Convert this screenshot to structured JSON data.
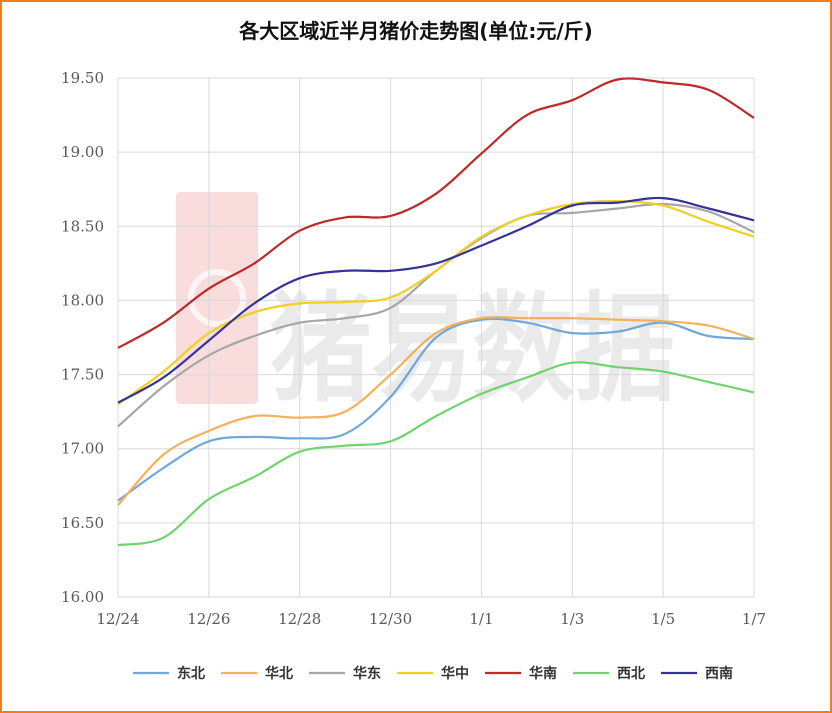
{
  "chart_data": {
    "type": "line",
    "title": "各大区域近半月猪价走势图(单位:元/斤)",
    "xlabel": "",
    "ylabel": "",
    "x_ticks": [
      "12/24",
      "12/26",
      "12/28",
      "12/30",
      "1/1",
      "1/3",
      "1/5",
      "1/7"
    ],
    "ylim": [
      16.0,
      19.5
    ],
    "y_ticks": [
      "16.00",
      "16.50",
      "17.00",
      "17.50",
      "18.00",
      "18.50",
      "19.00",
      "19.50"
    ],
    "grid": "vertical and horizontal",
    "legend_position": "bottom",
    "x": [
      "12/24",
      "12/25",
      "12/26",
      "12/27",
      "12/28",
      "12/29",
      "12/30",
      "12/31",
      "1/1",
      "1/2",
      "1/3",
      "1/4",
      "1/5",
      "1/6",
      "1/7"
    ],
    "series": [
      {
        "name": "东北",
        "color": "#6fa8dc",
        "values": [
          16.65,
          16.87,
          17.05,
          17.08,
          17.07,
          17.1,
          17.35,
          17.75,
          17.87,
          17.85,
          17.78,
          17.79,
          17.85,
          17.76,
          17.74
        ]
      },
      {
        "name": "华北",
        "color": "#f4b05a",
        "values": [
          16.62,
          16.96,
          17.12,
          17.22,
          17.21,
          17.25,
          17.5,
          17.78,
          17.88,
          17.88,
          17.88,
          17.87,
          17.86,
          17.83,
          17.74
        ]
      },
      {
        "name": "华东",
        "color": "#a6a6a6",
        "values": [
          17.15,
          17.42,
          17.63,
          17.76,
          17.85,
          17.88,
          17.95,
          18.2,
          18.42,
          18.57,
          18.59,
          18.62,
          18.65,
          18.6,
          18.46
        ]
      },
      {
        "name": "华中",
        "color": "#f0d020",
        "values": [
          17.3,
          17.52,
          17.78,
          17.92,
          17.98,
          17.99,
          18.02,
          18.2,
          18.43,
          18.57,
          18.65,
          18.67,
          18.64,
          18.53,
          18.43
        ]
      },
      {
        "name": "华南",
        "color": "#c0282a",
        "values": [
          17.68,
          17.85,
          18.08,
          18.25,
          18.47,
          18.56,
          18.57,
          18.72,
          18.99,
          19.25,
          19.35,
          19.49,
          19.47,
          19.42,
          19.23
        ]
      },
      {
        "name": "西北",
        "color": "#6ed46e",
        "values": [
          16.35,
          16.4,
          16.66,
          16.81,
          16.98,
          17.02,
          17.05,
          17.22,
          17.37,
          17.48,
          17.58,
          17.55,
          17.52,
          17.45,
          17.38
        ]
      },
      {
        "name": "西南",
        "color": "#333399",
        "values": [
          17.31,
          17.48,
          17.73,
          17.98,
          18.15,
          18.2,
          18.2,
          18.25,
          18.37,
          18.5,
          18.64,
          18.66,
          18.69,
          18.62,
          18.54
        ]
      }
    ]
  },
  "watermark": {
    "text": "猪易数据",
    "logo_color": "#e04040"
  }
}
